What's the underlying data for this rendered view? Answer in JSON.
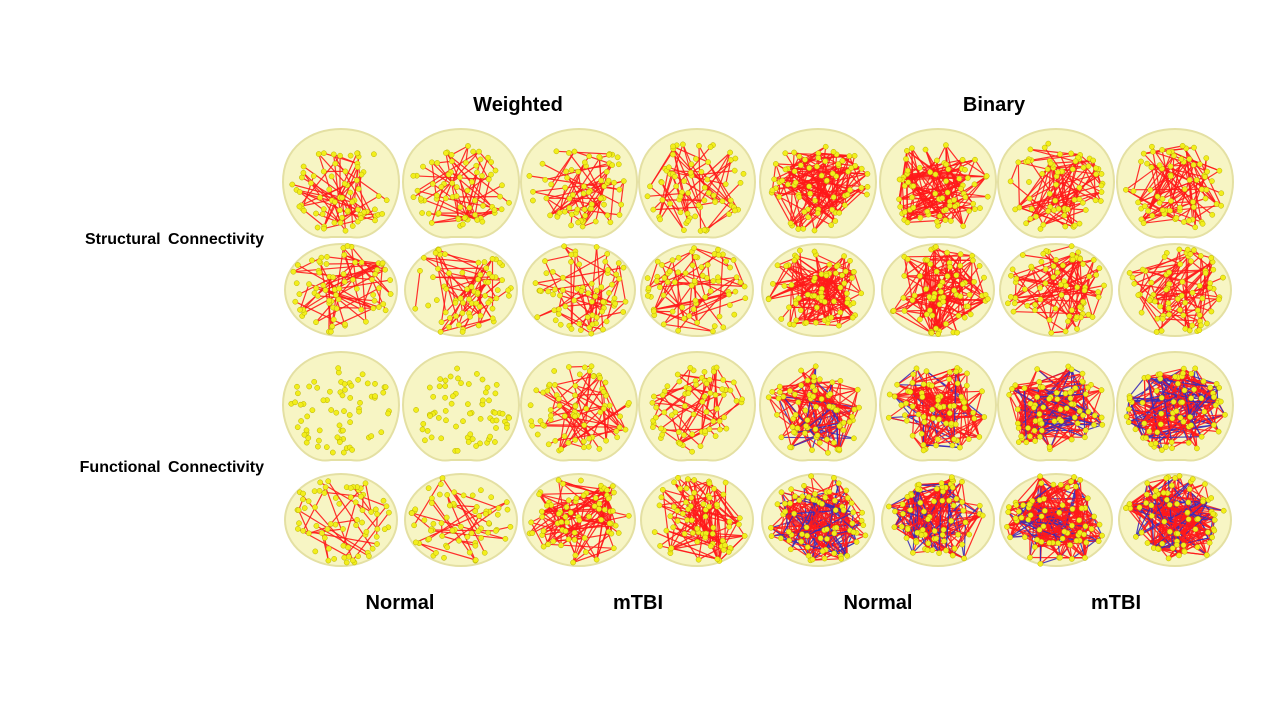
{
  "column_groups": {
    "weighted": "Weighted",
    "binary": "Binary"
  },
  "row_groups": {
    "structural": "Structural  Connectivity",
    "functional": "Functional  Connectivity"
  },
  "subject_groups": [
    "Normal",
    "mTBI",
    "Normal",
    "mTBI"
  ],
  "colors": {
    "node": "#f2ee1c",
    "edge_primary": "#ff1a1a",
    "edge_secondary": "#3a2bb8",
    "brain_fill": "#f7f5c4",
    "brain_stroke": "#e4e0a3"
  },
  "panel_density": [
    [
      2,
      2,
      2,
      2,
      5,
      5,
      3,
      3
    ],
    [
      2,
      2,
      2,
      2,
      5,
      5,
      3,
      3
    ],
    [
      0,
      0,
      2,
      2,
      6,
      6,
      8,
      8
    ],
    [
      1,
      1,
      4,
      4,
      8,
      8,
      9,
      9
    ]
  ]
}
